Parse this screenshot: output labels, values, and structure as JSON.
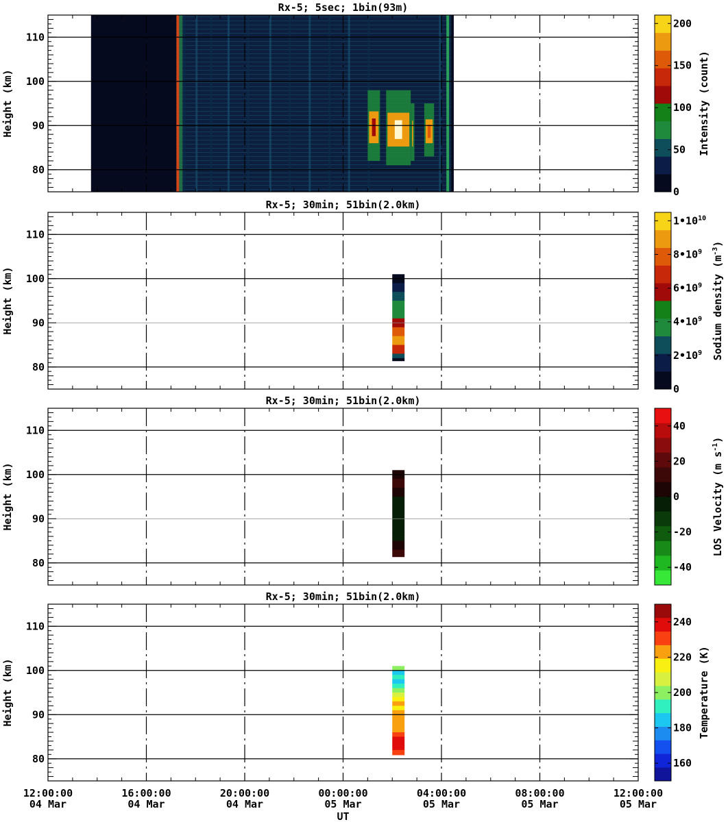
{
  "x_axis": {
    "label": "UT",
    "ticks": [
      {
        "time": "12:00:00",
        "date": "04 Mar"
      },
      {
        "time": "16:00:00",
        "date": "04 Mar"
      },
      {
        "time": "20:00:00",
        "date": "04 Mar"
      },
      {
        "time": "00:00:00",
        "date": "05 Mar"
      },
      {
        "time": "04:00:00",
        "date": "05 Mar"
      },
      {
        "time": "08:00:00",
        "date": "05 Mar"
      },
      {
        "time": "12:00:00",
        "date": "05 Mar"
      }
    ]
  },
  "chart_data": [
    {
      "type": "heatmap",
      "title": "Rx-5;  5sec; 1bin(93m)",
      "ylabel": "Height (km)",
      "xlabel": "UT",
      "xlim": [
        "04 Mar 12:00:00",
        "05 Mar 12:00:00"
      ],
      "ylim": [
        75,
        115
      ],
      "y_ticks": [
        80,
        90,
        100,
        110
      ],
      "x_ticks": [
        "12:00:00 04 Mar",
        "16:00:00 04 Mar",
        "20:00:00 04 Mar",
        "00:00:00 05 Mar",
        "04:00:00 05 Mar",
        "08:00:00 05 Mar",
        "12:00:00 05 Mar"
      ],
      "grid": true,
      "data_time_range_hours": [
        1.75,
        16.5
      ],
      "colorbar": {
        "label": "Intensity (count)",
        "range": [
          0,
          210
        ],
        "ticks": [
          "0",
          "50",
          "100",
          "150",
          "200"
        ],
        "colors": [
          "#050a1e",
          "#0b1c46",
          "#0e4d5a",
          "#1f8a3c",
          "#138018",
          "#a00a08",
          "#c8280a",
          "#de5a08",
          "#ec9a10",
          "#f8d418"
        ]
      },
      "features": [
        {
          "type": "vertical_line",
          "time_hours": 5.25,
          "value": "high",
          "range_km": [
            75,
            115
          ]
        },
        {
          "type": "band",
          "time_hours": [
            5.3,
            16.4
          ],
          "value": "low-medium",
          "range_km": [
            75,
            115
          ]
        },
        {
          "type": "patch",
          "time_hours": [
            13.0,
            13.5
          ],
          "height_km": [
            82,
            98
          ],
          "peak": 110
        },
        {
          "type": "patch",
          "time_hours": [
            13.75,
            14.75
          ],
          "height_km": [
            81,
            98
          ],
          "peak": 200
        },
        {
          "type": "patch",
          "time_hours": [
            14.75,
            14.9
          ],
          "height_km": [
            82,
            95
          ],
          "peak": 170
        },
        {
          "type": "patch",
          "time_hours": [
            15.3,
            15.7
          ],
          "height_km": [
            83,
            95
          ],
          "peak": 150
        }
      ]
    },
    {
      "type": "heatmap",
      "title": "Rx-5; 30min; 51bin(2.0km)",
      "ylabel": "Height (km)",
      "xlabel": "UT",
      "xlim": [
        "04 Mar 12:00:00",
        "05 Mar 12:00:00"
      ],
      "ylim": [
        75,
        115
      ],
      "y_ticks": [
        80,
        90,
        100,
        110
      ],
      "grid": true,
      "colorbar": {
        "label_main": "Sodium density (m",
        "label_exp": "-3",
        "label_end": ")",
        "range": [
          0,
          10500000000
        ],
        "ticks": [
          {
            "base": "0",
            "exp": ""
          },
          {
            "base": "2•10",
            "exp": "9"
          },
          {
            "base": "4•10",
            "exp": "9"
          },
          {
            "base": "6•10",
            "exp": "9"
          },
          {
            "base": "8•10",
            "exp": "9"
          },
          {
            "base": "1•10",
            "exp": "10"
          }
        ],
        "colors": [
          "#050a1e",
          "#0b1c46",
          "#0e4d5a",
          "#1f8a3c",
          "#138018",
          "#a00a08",
          "#c8280a",
          "#de5a08",
          "#ec9a10",
          "#f8d418"
        ]
      },
      "column": {
        "time_hours": [
          14.0,
          14.5
        ],
        "heights_km": [
          101,
          99,
          97,
          95,
          93,
          91,
          89,
          87,
          85,
          83,
          82
        ],
        "values": [
          100000000,
          1500000000,
          3000000000,
          3800000000,
          4000000000,
          6000000000,
          7500000000,
          9000000000,
          7000000000,
          2500000000,
          500000000
        ]
      }
    },
    {
      "type": "heatmap",
      "title": "Rx-5; 30min; 51bin(2.0km)",
      "ylabel": "Height (km)",
      "xlabel": "UT",
      "xlim": [
        "04 Mar 12:00:00",
        "05 Mar 12:00:00"
      ],
      "ylim": [
        75,
        115
      ],
      "y_ticks": [
        80,
        90,
        100,
        110
      ],
      "grid": true,
      "colorbar": {
        "label_main": "LOS Velocity (m s",
        "label_exp": "-1",
        "label_end": ")",
        "range": [
          -50,
          50
        ],
        "ticks": [
          {
            "base": "-40",
            "exp": ""
          },
          {
            "base": "-20",
            "exp": ""
          },
          {
            "base": "0",
            "exp": ""
          },
          {
            "base": "20",
            "exp": ""
          },
          {
            "base": "40",
            "exp": ""
          }
        ],
        "colors": [
          "#38e838",
          "#20b820",
          "#178a17",
          "#0f5c0f",
          "#0a3a0a",
          "#051e05",
          "#1e0505",
          "#3c0808",
          "#5e0a0a",
          "#8a0c0c",
          "#b80c0c",
          "#e81010"
        ]
      },
      "column": {
        "time_hours": [
          14.0,
          14.5
        ],
        "heights_km": [
          101,
          99,
          97,
          95,
          93,
          91,
          89,
          87,
          85,
          83,
          82
        ],
        "values": [
          8,
          12,
          4,
          -3,
          -6,
          -8,
          -8,
          -6,
          6,
          10,
          14
        ]
      }
    },
    {
      "type": "heatmap",
      "title": "Rx-5; 30min; 51bin(2.0km)",
      "ylabel": "Height (km)",
      "xlabel": "UT",
      "xlim": [
        "04 Mar 12:00:00",
        "05 Mar 12:00:00"
      ],
      "ylim": [
        75,
        115
      ],
      "y_ticks": [
        80,
        90,
        100,
        110
      ],
      "grid": true,
      "colorbar": {
        "label": "Temperature (K)",
        "range": [
          150,
          250
        ],
        "ticks": [
          "160",
          "180",
          "200",
          "220",
          "240"
        ],
        "colors": [
          "#10149a",
          "#1024d8",
          "#1450f0",
          "#1c8cf0",
          "#1cc8f0",
          "#30f0c0",
          "#8cf060",
          "#d8f040",
          "#f8f010",
          "#f8a010",
          "#f84010",
          "#e00c0c",
          "#9a0a0a"
        ]
      },
      "column": {
        "time_hours": [
          14.0,
          14.5
        ],
        "heights_km": [
          101,
          100,
          99,
          98,
          97,
          96,
          95,
          94,
          93,
          92,
          91,
          90,
          89,
          88,
          87,
          86,
          85,
          84,
          83,
          82,
          81.5
        ],
        "values": [
          197,
          188,
          190,
          186,
          194,
          198,
          205,
          215,
          225,
          218,
          220,
          221,
          222,
          224,
          226,
          234,
          238,
          242,
          240,
          230,
          234
        ]
      }
    }
  ]
}
